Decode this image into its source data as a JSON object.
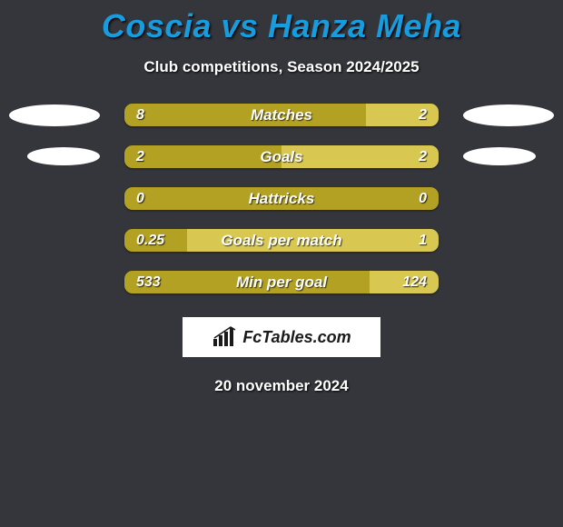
{
  "title": "Coscia vs Hanza Meha",
  "subtitle": "Club competitions, Season 2024/2025",
  "date": "20 november 2024",
  "logo_text": "FcTables.com",
  "colors": {
    "title": "#179cde",
    "left_bar": "#b2a122",
    "right_bar": "#d8c750",
    "background": "#35363c",
    "text": "#ffffff"
  },
  "stats": [
    {
      "label": "Matches",
      "left_val": "8",
      "right_val": "2",
      "left_pct": 77,
      "right_pct": 23,
      "show_left_ellipse": true,
      "show_right_ellipse": true,
      "ellipse_size": "lg"
    },
    {
      "label": "Goals",
      "left_val": "2",
      "right_val": "2",
      "left_pct": 50,
      "right_pct": 50,
      "show_left_ellipse": true,
      "show_right_ellipse": true,
      "ellipse_size": "sm"
    },
    {
      "label": "Hattricks",
      "left_val": "0",
      "right_val": "0",
      "left_pct": 100,
      "right_pct": 0,
      "show_left_ellipse": false,
      "show_right_ellipse": false
    },
    {
      "label": "Goals per match",
      "left_val": "0.25",
      "right_val": "1",
      "left_pct": 20,
      "right_pct": 80,
      "show_left_ellipse": false,
      "show_right_ellipse": false
    },
    {
      "label": "Min per goal",
      "left_val": "533",
      "right_val": "124",
      "left_pct": 78,
      "right_pct": 22,
      "show_left_ellipse": false,
      "show_right_ellipse": false
    }
  ]
}
